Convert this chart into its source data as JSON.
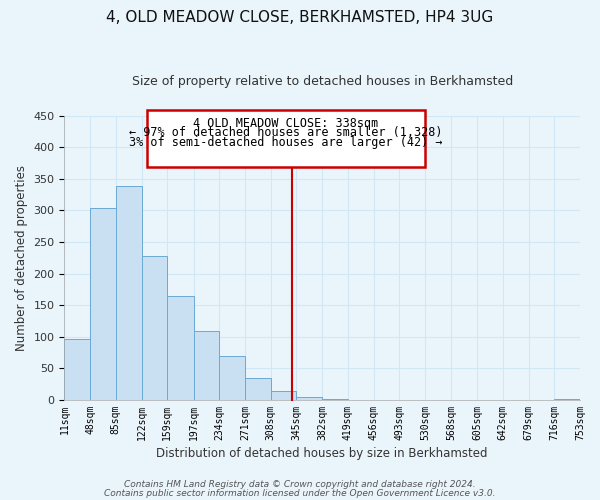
{
  "title": "4, OLD MEADOW CLOSE, BERKHAMSTED, HP4 3UG",
  "subtitle": "Size of property relative to detached houses in Berkhamsted",
  "xlabel": "Distribution of detached houses by size in Berkhamsted",
  "ylabel": "Number of detached properties",
  "bar_edges": [
    11,
    48,
    85,
    122,
    159,
    197,
    234,
    271,
    308,
    345,
    382,
    419,
    456,
    493,
    530,
    568,
    605,
    642,
    679,
    716,
    753
  ],
  "bar_heights": [
    97,
    304,
    338,
    227,
    165,
    109,
    69,
    35,
    14,
    5,
    2,
    0,
    0,
    0,
    0,
    0,
    0,
    0,
    0,
    1
  ],
  "bar_color": "#c9dff2",
  "bar_edge_color": "#6aaad4",
  "property_line_x": 338,
  "property_line_color": "#cc0000",
  "annotation_title": "4 OLD MEADOW CLOSE: 338sqm",
  "annotation_line1": "← 97% of detached houses are smaller (1,328)",
  "annotation_line2": "3% of semi-detached houses are larger (42) →",
  "annotation_box_color": "#ffffff",
  "annotation_box_edge": "#cc0000",
  "ylim": [
    0,
    450
  ],
  "xlim": [
    11,
    753
  ],
  "tick_labels": [
    "11sqm",
    "48sqm",
    "85sqm",
    "122sqm",
    "159sqm",
    "197sqm",
    "234sqm",
    "271sqm",
    "308sqm",
    "345sqm",
    "382sqm",
    "419sqm",
    "456sqm",
    "493sqm",
    "530sqm",
    "568sqm",
    "605sqm",
    "642sqm",
    "679sqm",
    "716sqm",
    "753sqm"
  ],
  "tick_positions": [
    11,
    48,
    85,
    122,
    159,
    197,
    234,
    271,
    308,
    345,
    382,
    419,
    456,
    493,
    530,
    568,
    605,
    642,
    679,
    716,
    753
  ],
  "yticks": [
    0,
    50,
    100,
    150,
    200,
    250,
    300,
    350,
    400,
    450
  ],
  "footer1": "Contains HM Land Registry data © Crown copyright and database right 2024.",
  "footer2": "Contains public sector information licensed under the Open Government Licence v3.0.",
  "background_color": "#eaf4fb",
  "grid_color": "#d0e8f5",
  "title_fontsize": 11,
  "subtitle_fontsize": 9,
  "axis_label_fontsize": 8.5,
  "tick_fontsize": 7,
  "annotation_fontsize": 8.5,
  "footer_fontsize": 6.5
}
